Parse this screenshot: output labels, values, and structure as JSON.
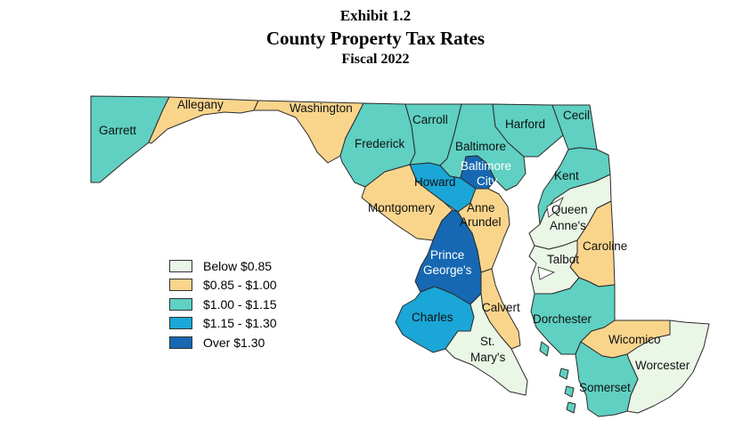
{
  "header": {
    "exhibit": "Exhibit 1.2",
    "title": "County Property Tax Rates",
    "subtitle": "Fiscal 2022"
  },
  "legend": [
    {
      "label": "Below $0.85",
      "color": "#eaf6e6"
    },
    {
      "label": "$0.85 - $1.00",
      "color": "#f9d58c"
    },
    {
      "label": "$1.00 - $1.15",
      "color": "#5fd0c2"
    },
    {
      "label": "$1.15 - $1.30",
      "color": "#1aa6d6"
    },
    {
      "label": "Over $1.30",
      "color": "#1668b2"
    }
  ],
  "counties": {
    "garrett": {
      "name": "Garrett",
      "category": 2
    },
    "allegany": {
      "name": "Allegany",
      "category": 1
    },
    "washington": {
      "name": "Washington",
      "category": 1
    },
    "frederick": {
      "name": "Frederick",
      "category": 2
    },
    "carroll": {
      "name": "Carroll",
      "category": 2
    },
    "baltimore": {
      "name": "Baltimore",
      "category": 2
    },
    "harford": {
      "name": "Harford",
      "category": 2
    },
    "cecil": {
      "name": "Cecil",
      "category": 2
    },
    "baltimore_city": {
      "name_line1": "Baltimore",
      "name_line2": "City",
      "category": 4
    },
    "howard": {
      "name": "Howard",
      "category": 3
    },
    "montgomery": {
      "name": "Montgomery",
      "category": 1
    },
    "anne_arundel": {
      "name_line1": "Anne",
      "name_line2": "Arundel",
      "category": 1
    },
    "prince_georges": {
      "name_line1": "Prince",
      "name_line2": "George's",
      "category": 4
    },
    "kent": {
      "name": "Kent",
      "category": 2
    },
    "queen_annes": {
      "name_line1": "Queen",
      "name_line2": "Anne's",
      "category": 0
    },
    "caroline": {
      "name": "Caroline",
      "category": 1
    },
    "talbot": {
      "name": "Talbot",
      "category": 0
    },
    "calvert": {
      "name": "Calvert",
      "category": 1
    },
    "charles": {
      "name": "Charles",
      "category": 3
    },
    "st_marys": {
      "name_line1": "St.",
      "name_line2": "Mary's",
      "category": 0
    },
    "dorchester": {
      "name": "Dorchester",
      "category": 2
    },
    "wicomico": {
      "name": "Wicomico",
      "category": 1
    },
    "worcester": {
      "name": "Worcester",
      "category": 0
    },
    "somerset": {
      "name": "Somerset",
      "category": 2
    }
  }
}
